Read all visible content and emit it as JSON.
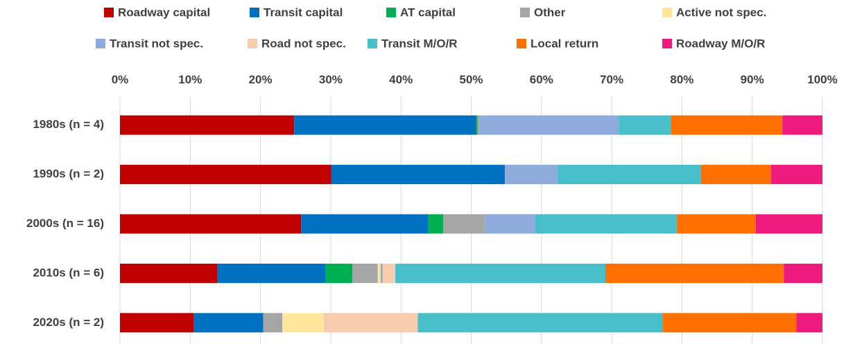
{
  "chart_data": {
    "type": "stacked_barh",
    "categories": [
      "1980s (n = 4)",
      "1990s (n = 2)",
      "2000s (n = 16)",
      "2010s (n = 6)",
      "2020s (n = 2)"
    ],
    "series": [
      {
        "name": "Roadway capital",
        "color": "#c00000",
        "values": [
          24.8,
          30.1,
          25.8,
          13.9,
          10.5
        ]
      },
      {
        "name": "Transit capital",
        "color": "#0070c0",
        "values": [
          25.9,
          24.7,
          18.1,
          15.4,
          9.9
        ]
      },
      {
        "name": "AT capital",
        "color": "#00b050",
        "values": [
          0.2,
          0,
          2.1,
          3.8,
          0
        ]
      },
      {
        "name": "Other",
        "color": "#a5a5a5",
        "values": [
          0.3,
          0,
          5.9,
          3.6,
          2.7
        ]
      },
      {
        "name": "Active not spec.",
        "color": "#ffe699",
        "values": [
          0,
          0,
          0,
          0.4,
          5.9
        ]
      },
      {
        "name": "Transit not spec.",
        "color": "#8faadc",
        "values": [
          19.8,
          7.5,
          7.2,
          0.3,
          0
        ]
      },
      {
        "name": "Road not spec.",
        "color": "#f8cbad",
        "values": [
          0,
          0,
          0,
          1.8,
          13.4
        ]
      },
      {
        "name": "Transit M/O/R",
        "color": "#47bec9",
        "values": [
          7.4,
          20.4,
          20.2,
          29.9,
          34.9
        ]
      },
      {
        "name": "Local return",
        "color": "#ff7000",
        "values": [
          15.9,
          10.0,
          11.2,
          25.4,
          19.0
        ]
      },
      {
        "name": "Roadway M/O/R",
        "color": "#ef1a7e",
        "values": [
          5.7,
          7.3,
          9.5,
          5.5,
          3.7
        ]
      }
    ],
    "xlim": [
      0,
      100
    ],
    "xticks": [
      {
        "value": 0,
        "label": "0%"
      },
      {
        "value": 10,
        "label": "10%"
      },
      {
        "value": 20,
        "label": "20%"
      },
      {
        "value": 30,
        "label": "30%"
      },
      {
        "value": 40,
        "label": "40%"
      },
      {
        "value": 50,
        "label": "50%"
      },
      {
        "value": 60,
        "label": "60%"
      },
      {
        "value": 70,
        "label": "70%"
      },
      {
        "value": 80,
        "label": "80%"
      },
      {
        "value": 90,
        "label": "90%"
      },
      {
        "value": 100,
        "label": "100%"
      }
    ],
    "grid": true
  }
}
